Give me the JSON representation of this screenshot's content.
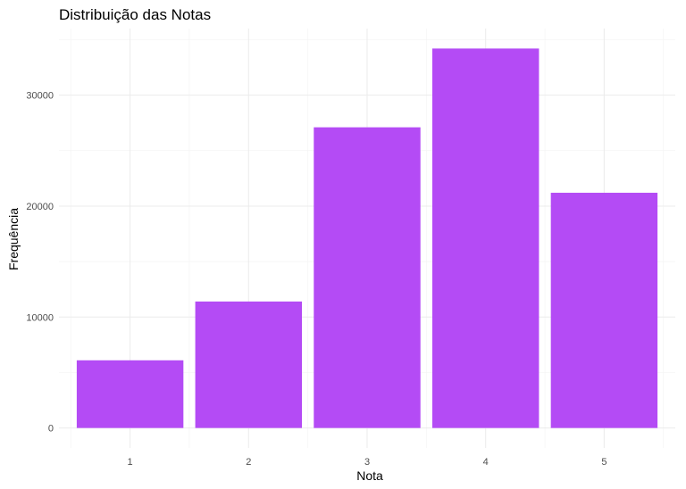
{
  "chart_data": {
    "type": "bar",
    "title": "Distribuição das Notas",
    "xlabel": "Nota",
    "ylabel": "Frequência",
    "categories": [
      "1",
      "2",
      "3",
      "4",
      "5"
    ],
    "values": [
      6100,
      11400,
      27100,
      34200,
      21200
    ],
    "ylim": [
      -1800,
      36000
    ],
    "yticks": [
      0,
      10000,
      20000,
      30000
    ],
    "ytick_labels": [
      "0",
      "10000",
      "20000",
      "30000"
    ],
    "bar_color": "#b44bf5",
    "grid": true,
    "legend": "none"
  }
}
